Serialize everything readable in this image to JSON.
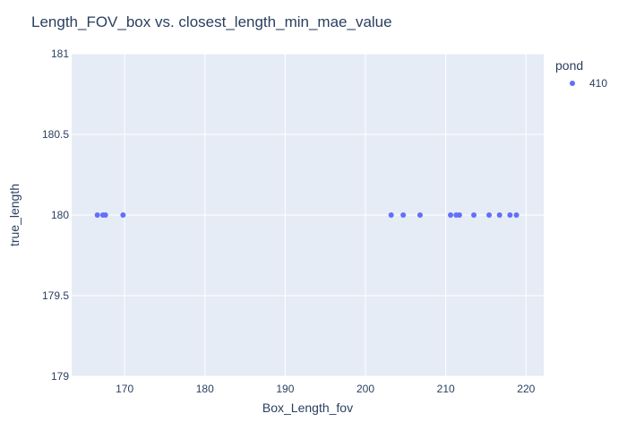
{
  "chart_data": {
    "type": "scatter",
    "title": "Length_FOV_box vs. closest_length_min_mae_value",
    "xlabel": "Box_Length_fov",
    "ylabel": "true_length",
    "xlim": [
      163.4,
      222.2
    ],
    "ylim": [
      179,
      181
    ],
    "xticks": [
      170,
      180,
      190,
      200,
      210,
      220
    ],
    "yticks": [
      179,
      179.5,
      180,
      180.5,
      181
    ],
    "grid": true,
    "legend": {
      "title": "pond",
      "placement": "top-right"
    },
    "series": [
      {
        "name": "410",
        "color": "#636efa",
        "points": [
          {
            "x": 166.6,
            "y": 180
          },
          {
            "x": 167.3,
            "y": 180
          },
          {
            "x": 167.6,
            "y": 180
          },
          {
            "x": 169.8,
            "y": 180
          },
          {
            "x": 203.2,
            "y": 180
          },
          {
            "x": 204.7,
            "y": 180
          },
          {
            "x": 206.8,
            "y": 180
          },
          {
            "x": 210.6,
            "y": 180
          },
          {
            "x": 211.3,
            "y": 180
          },
          {
            "x": 211.7,
            "y": 180
          },
          {
            "x": 213.5,
            "y": 180
          },
          {
            "x": 215.4,
            "y": 180
          },
          {
            "x": 216.7,
            "y": 180
          },
          {
            "x": 218.0,
            "y": 180
          },
          {
            "x": 218.8,
            "y": 180
          }
        ]
      }
    ]
  },
  "colors": {
    "plot_background": "#e5ecf6",
    "grid": "#ffffff",
    "text": "#2a3f5f",
    "marker": "#636efa"
  }
}
